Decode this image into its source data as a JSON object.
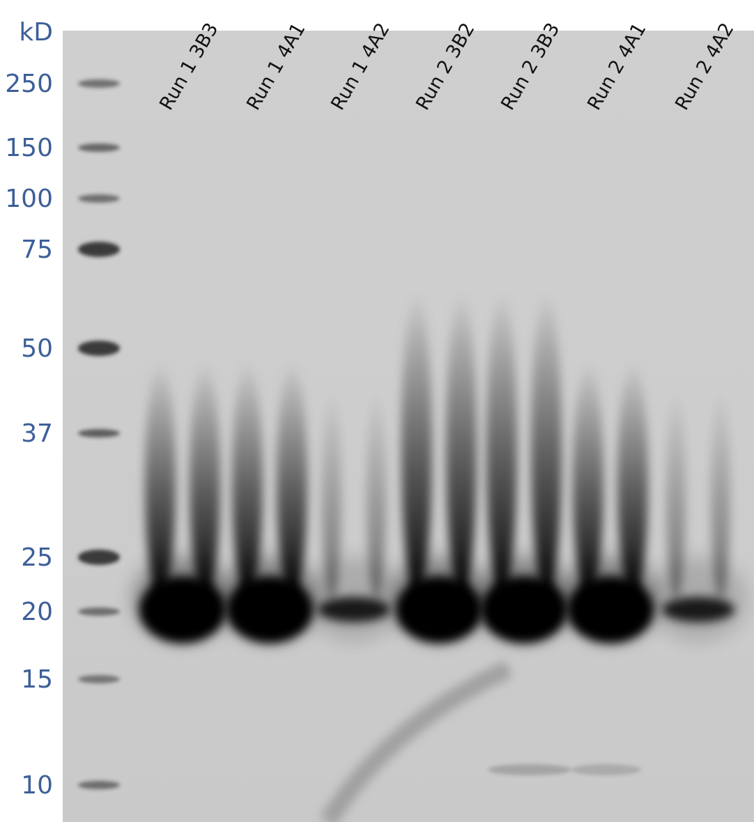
{
  "axis_unit": "kD",
  "markers": [
    "250",
    "150",
    "100",
    "75",
    "50",
    "37",
    "25",
    "20",
    "15",
    "10"
  ],
  "lanes": [
    "Run 1 3B3",
    "Run 1 4A1",
    "Run 1 4A2",
    "Run 2 3B2",
    "Run 2 3B3",
    "Run 2 4A1",
    "Run 2 4A2"
  ]
}
